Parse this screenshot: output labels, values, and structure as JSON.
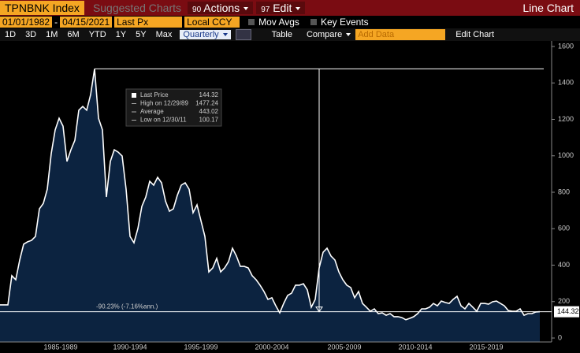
{
  "toolbar": {
    "security": "TPNBNK Index",
    "suggested": "Suggested Charts",
    "actions_num": "90",
    "actions": "Actions",
    "edit_num": "97",
    "edit": "Edit",
    "chart_type": "Line Chart"
  },
  "range": {
    "start": "01/01/1982",
    "end": "04/15/2021",
    "separator": "-",
    "field": "Last Px",
    "currency": "Local CCY",
    "mov_avgs": "Mov Avgs",
    "key_events": "Key Events"
  },
  "periods": [
    "1D",
    "3D",
    "1M",
    "6M",
    "YTD",
    "1Y",
    "5Y",
    "Max"
  ],
  "frequency": "Quarterly",
  "table": "Table",
  "compare": "Compare",
  "add_data": "Add Data",
  "edit_chart": "Edit Chart",
  "chart_data": {
    "type": "line",
    "color": "#ffffff",
    "fill": "#0c2340",
    "values": [
      182,
      182,
      182,
      342,
      320,
      428,
      515,
      528,
      536,
      558,
      709,
      739,
      817,
      1012,
      1142,
      1206,
      1163,
      969,
      1033,
      1085,
      1250,
      1271,
      1250,
      1336,
      1477.24,
      1206,
      1142,
      774,
      969,
      1033,
      1020,
      999,
      817,
      558,
      523,
      601,
      722,
      774,
      860,
      839,
      882,
      852,
      752,
      696,
      709,
      783,
      839,
      852,
      817,
      688,
      731,
      644,
      558,
      363,
      385,
      437,
      363,
      385,
      419,
      493,
      450,
      393,
      393,
      385,
      342,
      320,
      290,
      255,
      212,
      221,
      177,
      138,
      190,
      234,
      246,
      290,
      290,
      298,
      264,
      169,
      212,
      385,
      471,
      493,
      450,
      428,
      363,
      320,
      290,
      277,
      221,
      255,
      190,
      169,
      147,
      160,
      134,
      138,
      125,
      134,
      117,
      117,
      112,
      100.17,
      108,
      117,
      134,
      160,
      160,
      169,
      190,
      177,
      203,
      195,
      190,
      212,
      229,
      177,
      160,
      190,
      169,
      147,
      190,
      190,
      186,
      199,
      203,
      190,
      177,
      151,
      147,
      147,
      160,
      125,
      134,
      134,
      143,
      144.32
    ],
    "xlim": [
      0,
      140
    ],
    "xticks": [
      {
        "value": 15.4,
        "label": "1985-1989"
      },
      {
        "value": 33,
        "label": "1990-1994"
      },
      {
        "value": 51,
        "label": "1995-1999"
      },
      {
        "value": 69,
        "label": "2000-2004"
      },
      {
        "value": 87.4,
        "label": "2005-2009"
      },
      {
        "value": 105.4,
        "label": "2010-2014"
      },
      {
        "value": 123.4,
        "label": "2015-2019"
      }
    ],
    "ylim": [
      0,
      1600
    ],
    "yticks": [
      0,
      200,
      400,
      600,
      800,
      1000,
      1200,
      1400,
      1600
    ],
    "legend": [
      {
        "label": "Last Price",
        "value": 144.32
      },
      {
        "label": "High on 12/29/89",
        "value": 1477.24
      },
      {
        "label": "Average",
        "value": 443.02
      },
      {
        "label": "Low on 12/30/11",
        "value": 100.17
      }
    ],
    "annotation": "-90.23% (-7.16%ann.)"
  }
}
